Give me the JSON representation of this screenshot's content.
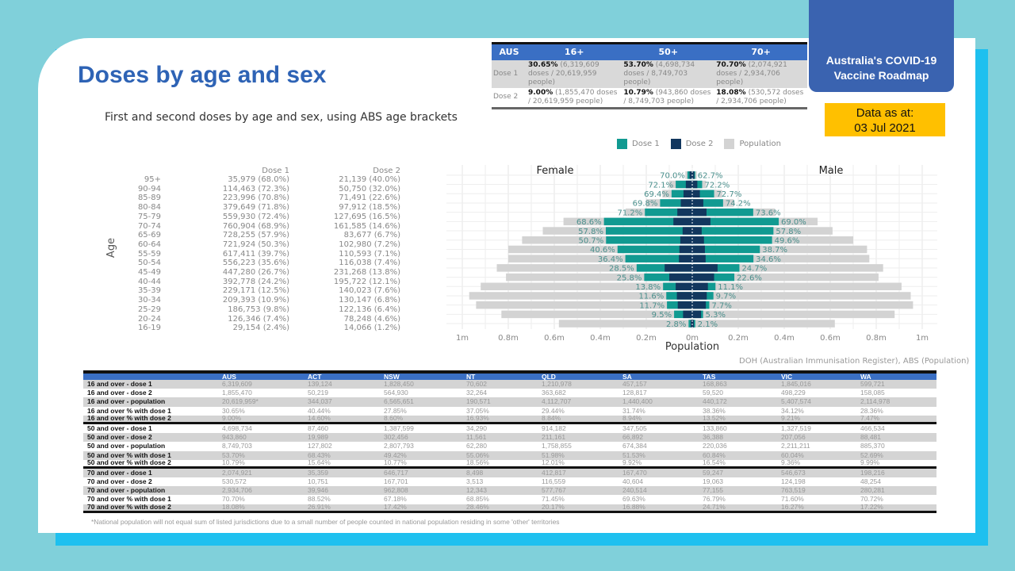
{
  "brand": {
    "line1": "Australia's COVID-19",
    "line2": "Vaccine Roadmap"
  },
  "data_as_at": {
    "label": "Data as at:",
    "date": "03 Jul 2021"
  },
  "title": "Doses by age and sex",
  "subtitle": "First and second doses by age and sex, using ABS age brackets",
  "summary": {
    "headers": [
      "AUS",
      "16+",
      "50+",
      "70+"
    ],
    "rows": [
      {
        "label": "Dose 1",
        "cells": [
          {
            "pct": "30.65%",
            "detail": "(6,319,609 doses / 20,619,959 people)"
          },
          {
            "pct": "53.70%",
            "detail": "(4,698,734 doses / 8,749,703 people)"
          },
          {
            "pct": "70.70%",
            "detail": "(2,074,921 doses / 2,934,706 people)"
          }
        ]
      },
      {
        "label": "Dose 2",
        "cells": [
          {
            "pct": "9.00%",
            "detail": "(1,855,470 doses / 20,619,959 people)"
          },
          {
            "pct": "10.79%",
            "detail": "(943,860 doses / 8,749,703 people)"
          },
          {
            "pct": "18.08%",
            "detail": "(530,572 doses / 2,934,706 people)"
          }
        ]
      }
    ]
  },
  "age_table": {
    "axis_label": "Age",
    "headers": [
      "Dose 1",
      "Dose 2"
    ],
    "rows": [
      [
        "95+",
        "35,979 (68.0%)",
        "21,139 (40.0%)"
      ],
      [
        "90-94",
        "114,463 (72.3%)",
        "50,750 (32.0%)"
      ],
      [
        "85-89",
        "223,996 (70.8%)",
        "71,491 (22.6%)"
      ],
      [
        "80-84",
        "379,649 (71.8%)",
        "97,912 (18.5%)"
      ],
      [
        "75-79",
        "559,930 (72.4%)",
        "127,695 (16.5%)"
      ],
      [
        "70-74",
        "760,904 (68.9%)",
        "161,585 (14.6%)"
      ],
      [
        "65-69",
        "728,255 (57.9%)",
        "83,677 (6.7%)"
      ],
      [
        "60-64",
        "721,924 (50.3%)",
        "102,980 (7.2%)"
      ],
      [
        "55-59",
        "617,411 (39.7%)",
        "110,593 (7.1%)"
      ],
      [
        "50-54",
        "556,223 (35.6%)",
        "116,038 (7.4%)"
      ],
      [
        "45-49",
        "447,280 (26.7%)",
        "231,268 (13.8%)"
      ],
      [
        "40-44",
        "392,778 (24.2%)",
        "195,722 (12.1%)"
      ],
      [
        "35-39",
        "229,171 (12.5%)",
        "140,023 (7.6%)"
      ],
      [
        "30-34",
        "209,393 (10.9%)",
        "130,147 (6.8%)"
      ],
      [
        "25-29",
        "186,753 (9.8%)",
        "122,136 (6.4%)"
      ],
      [
        "20-24",
        "126,346 (7.4%)",
        "78,248 (4.6%)"
      ],
      [
        "16-19",
        "29,154 (2.4%)",
        "14,066 (1.2%)"
      ]
    ]
  },
  "chart_data": {
    "type": "bar",
    "orientation": "horizontal-population-pyramid",
    "xlabel": "Population",
    "ylabel": "",
    "panels": [
      "Female",
      "Male"
    ],
    "xlim": [
      -1,
      1
    ],
    "x_unit": "m",
    "xticks": [
      "1m",
      "0.8m",
      "0.6m",
      "0.4m",
      "0.2m",
      "0m",
      "0.2m",
      "0.4m",
      "0.6m",
      "0.8m",
      "1m"
    ],
    "legend": {
      "position": "top",
      "items": [
        {
          "name": "Dose 1",
          "color": "#119a91"
        },
        {
          "name": "Dose 2",
          "color": "#12375e"
        },
        {
          "name": "Population",
          "color": "#d3d3d3"
        }
      ]
    },
    "grid": true,
    "categories": [
      "95+",
      "90-94",
      "85-89",
      "80-84",
      "75-79",
      "70-74",
      "65-69",
      "60-64",
      "55-59",
      "50-54",
      "45-49",
      "40-44",
      "35-39",
      "30-34",
      "25-29",
      "20-24",
      "16-19"
    ],
    "female": {
      "population": [
        0.03,
        0.1,
        0.13,
        0.2,
        0.29,
        0.56,
        0.65,
        0.74,
        0.8,
        0.8,
        0.85,
        0.81,
        0.92,
        0.97,
        0.94,
        0.83,
        0.58
      ],
      "dose1": [
        0.021,
        0.072,
        0.09,
        0.14,
        0.206,
        0.384,
        0.376,
        0.375,
        0.325,
        0.291,
        0.242,
        0.209,
        0.127,
        0.113,
        0.11,
        0.079,
        0.016
      ],
      "dose2": [
        0.012,
        0.028,
        0.038,
        0.05,
        0.065,
        0.082,
        0.042,
        0.052,
        0.056,
        0.058,
        0.12,
        0.1,
        0.072,
        0.067,
        0.063,
        0.04,
        0.007
      ],
      "dose1_labels": [
        "70.0%",
        "72.1%",
        "69.4%",
        "69.8%",
        "71.2%",
        "68.6%",
        "57.8%",
        "50.7%",
        "40.6%",
        "36.4%",
        "28.5%",
        "25.8%",
        "13.8%",
        "11.6%",
        "11.7%",
        "9.5%",
        "2.8%"
      ]
    },
    "male": {
      "population": [
        0.02,
        0.06,
        0.13,
        0.18,
        0.36,
        0.545,
        0.61,
        0.7,
        0.76,
        0.77,
        0.83,
        0.81,
        0.91,
        0.95,
        0.96,
        0.88,
        0.62
      ],
      "dose1": [
        0.013,
        0.043,
        0.095,
        0.134,
        0.265,
        0.376,
        0.353,
        0.347,
        0.294,
        0.266,
        0.205,
        0.183,
        0.101,
        0.092,
        0.074,
        0.047,
        0.013
      ],
      "dose2": [
        0.009,
        0.022,
        0.033,
        0.048,
        0.062,
        0.079,
        0.041,
        0.051,
        0.055,
        0.058,
        0.11,
        0.095,
        0.068,
        0.063,
        0.059,
        0.038,
        0.007
      ],
      "dose1_labels": [
        "62.7%",
        "72.2%",
        "72.7%",
        "74.2%",
        "73.6%",
        "69.0%",
        "57.8%",
        "49.6%",
        "38.7%",
        "34.6%",
        "24.7%",
        "22.6%",
        "11.1%",
        "9.7%",
        "7.7%",
        "5.3%",
        "2.1%"
      ]
    }
  },
  "source": "DOH (Australian Immunisation Register), ABS (Population)",
  "jurisdictions": {
    "headers": [
      "",
      "AUS",
      "ACT",
      "NSW",
      "NT",
      "QLD",
      "SA",
      "TAS",
      "VIC",
      "WA"
    ],
    "rows": [
      [
        "16 and over - dose 1",
        "6,319,609",
        "139,124",
        "1,828,450",
        "70,602",
        "1,210,978",
        "457,157",
        "168,863",
        "1,845,016",
        "599,721"
      ],
      [
        "16 and over - dose 2",
        "1,855,470",
        "50,219",
        "564,930",
        "32,264",
        "363,682",
        "128,817",
        "59,520",
        "498,229",
        "158,085"
      ],
      [
        "16 and over - population",
        "20,619,959*",
        "344,037",
        "6,565,651",
        "190,571",
        "4,112,707",
        "1,440,400",
        "440,172",
        "5,407,574",
        "2,114,978"
      ],
      [
        "16 and over % with dose 1",
        "30.65%",
        "40.44%",
        "27.85%",
        "37.05%",
        "29.44%",
        "31.74%",
        "38.36%",
        "34.12%",
        "28.36%"
      ],
      [
        "16 and over % with dose 2",
        "9.00%",
        "14.60%",
        "8.60%",
        "16.93%",
        "8.84%",
        "8.94%",
        "13.52%",
        "9.21%",
        "7.47%"
      ],
      [
        "50 and over - dose 1",
        "4,698,734",
        "87,460",
        "1,387,599",
        "34,290",
        "914,182",
        "347,505",
        "133,860",
        "1,327,519",
        "466,534"
      ],
      [
        "50 and over - dose 2",
        "943,860",
        "19,989",
        "302,456",
        "11,561",
        "211,161",
        "66,892",
        "36,388",
        "207,056",
        "88,481"
      ],
      [
        "50 and over - population",
        "8,749,703",
        "127,802",
        "2,807,793",
        "62,280",
        "1,758,855",
        "674,384",
        "220,036",
        "2,211,211",
        "885,370"
      ],
      [
        "50 and over % with dose 1",
        "53.70%",
        "68.43%",
        "49.42%",
        "55.06%",
        "51.98%",
        "51.53%",
        "60.84%",
        "60.04%",
        "52.69%"
      ],
      [
        "50 and over % with dose 2",
        "10.79%",
        "15.64%",
        "10.77%",
        "18.56%",
        "12.01%",
        "9.92%",
        "16.54%",
        "9.36%",
        "9.99%"
      ],
      [
        "70 and over - dose 1",
        "2,074,921",
        "35,359",
        "646,717",
        "8,498",
        "412,817",
        "167,470",
        "59,247",
        "546,673",
        "198,216"
      ],
      [
        "70 and over - dose 2",
        "530,572",
        "10,751",
        "167,701",
        "3,513",
        "116,559",
        "40,604",
        "19,063",
        "124,198",
        "48,254"
      ],
      [
        "70 and over - population",
        "2,934,706",
        "39,946",
        "962,808",
        "12,343",
        "577,767",
        "240,514",
        "77,155",
        "763,519",
        "280,281"
      ],
      [
        "70 and over % with dose 1",
        "70.70%",
        "88.52%",
        "67.18%",
        "68.85%",
        "71.45%",
        "69.63%",
        "76.79%",
        "71.60%",
        "70.72%"
      ],
      [
        "70 and over % with dose 2",
        "18.08%",
        "26.91%",
        "17.42%",
        "28.46%",
        "20.17%",
        "16.88%",
        "24.71%",
        "16.27%",
        "17.22%"
      ]
    ]
  },
  "footnote": "*National population will not equal sum of listed jurisdictions due to a small number of people counted in national population residing in some 'other' territories"
}
